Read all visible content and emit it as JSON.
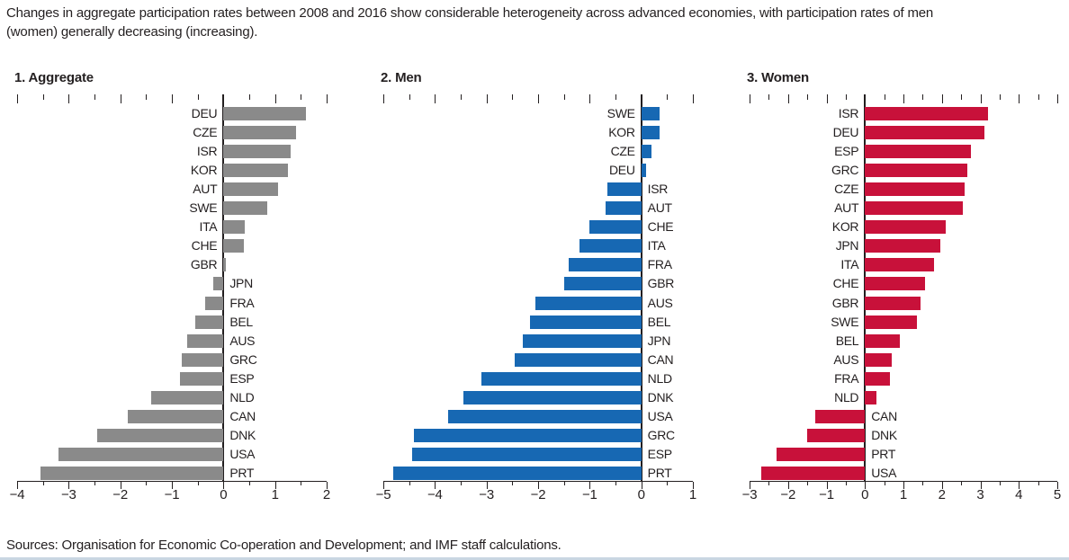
{
  "caption": {
    "line1": "Changes in aggregate participation rates between 2008 and 2016 show considerable heterogeneity across advanced economies, with participation rates of men",
    "line2": "(women) generally decreasing (increasing)."
  },
  "sources": "Sources: Organisation for Economic Co-operation and Development; and IMF staff calculations.",
  "colors": {
    "text": "#231f20",
    "aggregate_bar": "#8a8a8a",
    "men_bar": "#1768b3",
    "women_bar": "#c8113a",
    "bottom_rule": "#c9d6e2"
  },
  "chart_data": [
    {
      "type": "bar",
      "orientation": "horizontal",
      "title": "1. Aggregate",
      "color": "#8a8a8a",
      "xlim": [
        -4,
        2
      ],
      "tick_step_major": 1,
      "tick_step_minor": 0.5,
      "grid": false,
      "categories": [
        "DEU",
        "CZE",
        "ISR",
        "KOR",
        "AUT",
        "SWE",
        "ITA",
        "CHE",
        "GBR",
        "JPN",
        "FRA",
        "BEL",
        "AUS",
        "GRC",
        "ESP",
        "NLD",
        "CAN",
        "DNK",
        "USA",
        "PRT"
      ],
      "values": [
        1.6,
        1.4,
        1.3,
        1.25,
        1.05,
        0.85,
        0.42,
        0.4,
        0.05,
        -0.2,
        -0.35,
        -0.55,
        -0.7,
        -0.8,
        -0.85,
        -1.4,
        -1.85,
        -2.45,
        -3.2,
        -3.55
      ]
    },
    {
      "type": "bar",
      "orientation": "horizontal",
      "title": "2. Men",
      "color": "#1768b3",
      "xlim": [
        -5,
        1
      ],
      "tick_step_major": 1,
      "tick_step_minor": 0.5,
      "grid": false,
      "categories": [
        "SWE",
        "KOR",
        "CZE",
        "DEU",
        "ISR",
        "AUT",
        "CHE",
        "ITA",
        "FRA",
        "GBR",
        "AUS",
        "BEL",
        "JPN",
        "CAN",
        "NLD",
        "DNK",
        "USA",
        "GRC",
        "ESP",
        "PRT"
      ],
      "values": [
        0.35,
        0.35,
        0.2,
        0.1,
        -0.65,
        -0.7,
        -1.0,
        -1.2,
        -1.4,
        -1.5,
        -2.05,
        -2.15,
        -2.3,
        -2.45,
        -3.1,
        -3.45,
        -3.75,
        -4.4,
        -4.45,
        -4.8
      ]
    },
    {
      "type": "bar",
      "orientation": "horizontal",
      "title": "3. Women",
      "color": "#c8113a",
      "xlim": [
        -3,
        5
      ],
      "tick_step_major": 1,
      "tick_step_minor": 0.5,
      "grid": false,
      "categories": [
        "ISR",
        "DEU",
        "ESP",
        "GRC",
        "CZE",
        "AUT",
        "KOR",
        "JPN",
        "ITA",
        "CHE",
        "GBR",
        "SWE",
        "BEL",
        "AUS",
        "FRA",
        "NLD",
        "CAN",
        "DNK",
        "PRT",
        "USA"
      ],
      "values": [
        3.2,
        3.1,
        2.75,
        2.65,
        2.6,
        2.55,
        2.1,
        1.95,
        1.8,
        1.55,
        1.45,
        1.35,
        0.9,
        0.7,
        0.65,
        0.3,
        -1.3,
        -1.5,
        -2.3,
        -2.7
      ]
    }
  ]
}
